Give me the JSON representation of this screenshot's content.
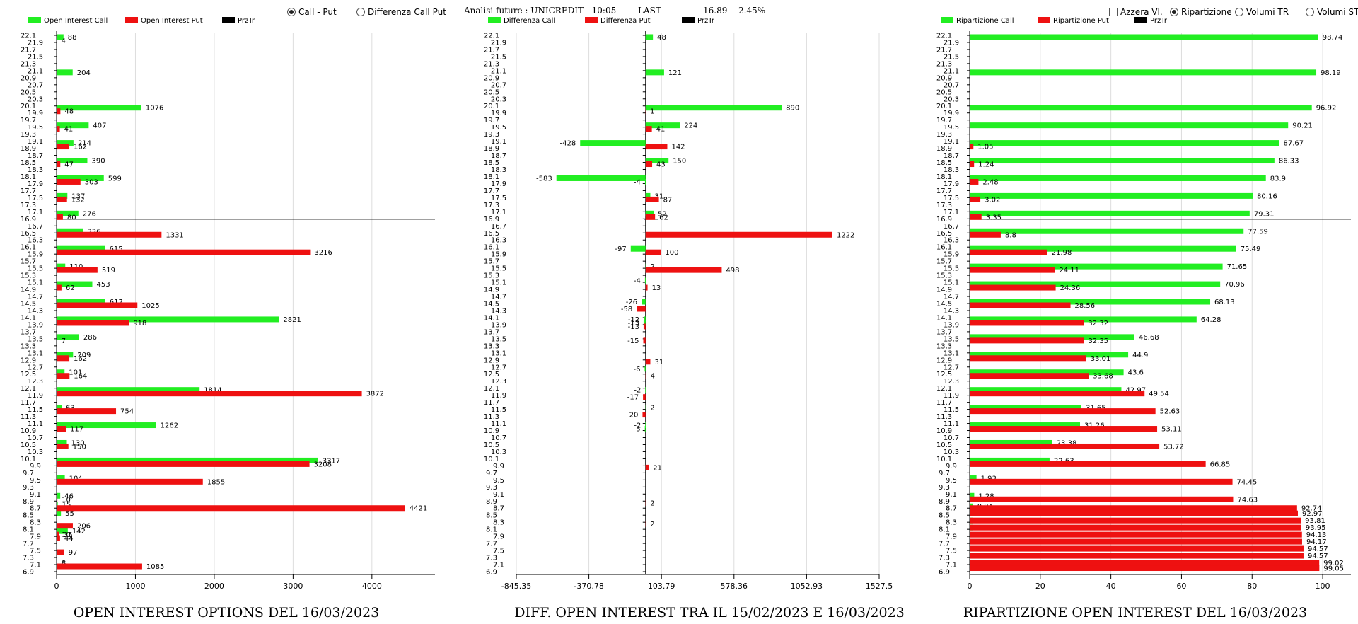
{
  "controls": {
    "radio_call_put": "Call - Put",
    "radio_diff_call_put": "Differenza Call Put",
    "header_analysis": "Analisi future : UNICREDIT - 10:05",
    "header_last_label": "LAST",
    "header_last_value": "16.89",
    "header_change": "2.45%",
    "check_azzera": "Azzera Vl.",
    "radio_ripartizione": "Ripartizione",
    "radio_volumi_tr": "Volumi TR",
    "radio_volumi_st": "Volumi ST"
  },
  "colors": {
    "call": "#22ee22",
    "put": "#ee1111",
    "prz": "#000000",
    "grid": "#dddddd"
  },
  "chart_data": [
    {
      "type": "bar",
      "orientation": "horizontal",
      "title": "OPEN INTEREST OPTIONS DEL 16/03/2023",
      "legend": [
        "Open Interest Call",
        "Open Interest Put",
        "PrzTr"
      ],
      "legend_position": "top",
      "y_ticks": [
        "22.1",
        "21.9",
        "21.7",
        "21.5",
        "21.3",
        "21.1",
        "20.9",
        "20.7",
        "20.5",
        "20.3",
        "20.1",
        "19.9",
        "19.7",
        "19.5",
        "19.3",
        "19.1",
        "18.9",
        "18.7",
        "18.5",
        "18.3",
        "18.1",
        "17.9",
        "17.7",
        "17.5",
        "17.3",
        "17.1",
        "16.9",
        "16.7",
        "16.5",
        "16.3",
        "16.1",
        "15.9",
        "15.7",
        "15.5",
        "15.3",
        "15.1",
        "14.9",
        "14.7",
        "14.5",
        "14.3",
        "14.1",
        "13.9",
        "13.7",
        "13.5",
        "13.3",
        "13.1",
        "12.9",
        "12.7",
        "12.5",
        "12.3",
        "12.1",
        "11.9",
        "11.7",
        "11.5",
        "11.3",
        "11.1",
        "10.9",
        "10.7",
        "10.5",
        "10.3",
        "10.1",
        "9.9",
        "9.7",
        "9.5",
        "9.3",
        "9.1",
        "8.9",
        "8.7",
        "8.5",
        "8.3",
        "8.1",
        "7.9",
        "7.7",
        "7.5",
        "7.3",
        "7.1",
        "6.9"
      ],
      "x_ticks": [
        "0",
        "1000",
        "2000",
        "3000",
        "4000"
      ],
      "xlim": [
        0,
        4800
      ],
      "prz_tr": 16.89,
      "series": [
        {
          "name": "Open Interest Call",
          "points": [
            [
              22.0,
              88
            ],
            [
              21.0,
              204
            ],
            [
              20.0,
              1076
            ],
            [
              19.5,
              407
            ],
            [
              19.0,
              214
            ],
            [
              18.5,
              390
            ],
            [
              18.0,
              599
            ],
            [
              17.5,
              137
            ],
            [
              17.0,
              276
            ],
            [
              16.5,
              336
            ],
            [
              16.0,
              615
            ],
            [
              15.5,
              110
            ],
            [
              15.0,
              453
            ],
            [
              14.5,
              617
            ],
            [
              14.0,
              2821
            ],
            [
              13.5,
              286
            ],
            [
              13.0,
              209
            ],
            [
              12.5,
              101
            ],
            [
              12.0,
              1814
            ],
            [
              11.5,
              63
            ],
            [
              11.0,
              1262
            ],
            [
              10.5,
              130
            ],
            [
              10.0,
              3317
            ],
            [
              9.5,
              104
            ],
            [
              9.0,
              46
            ],
            [
              8.75,
              15
            ],
            [
              8.5,
              55
            ],
            [
              8.0,
              142
            ],
            [
              7.9,
              10
            ],
            [
              7.1,
              8
            ]
          ]
        },
        {
          "name": "Open Interest Put",
          "points": [
            [
              22.0,
              4
            ],
            [
              20.0,
              48
            ],
            [
              19.5,
              41
            ],
            [
              19.0,
              162
            ],
            [
              18.5,
              47
            ],
            [
              18.0,
              303
            ],
            [
              17.5,
              132
            ],
            [
              17.0,
              80
            ],
            [
              16.5,
              1331
            ],
            [
              16.0,
              3216
            ],
            [
              15.5,
              519
            ],
            [
              15.0,
              62
            ],
            [
              14.5,
              1025
            ],
            [
              14.0,
              918
            ],
            [
              13.5,
              7
            ],
            [
              13.0,
              162
            ],
            [
              12.5,
              164
            ],
            [
              12.0,
              3872
            ],
            [
              11.5,
              754
            ],
            [
              11.0,
              117
            ],
            [
              10.5,
              150
            ],
            [
              10.0,
              3208
            ],
            [
              9.5,
              1855
            ],
            [
              9.0,
              10
            ],
            [
              8.75,
              4421
            ],
            [
              8.25,
              206
            ],
            [
              8.0,
              35
            ],
            [
              7.9,
              44
            ],
            [
              7.5,
              97
            ],
            [
              7.2,
              4
            ],
            [
              7.1,
              1085
            ]
          ]
        }
      ]
    },
    {
      "type": "bar",
      "orientation": "horizontal",
      "title": "DIFF. OPEN INTEREST TRA IL 15/02/2023 E 16/03/2023",
      "legend": [
        "Differenza Call",
        "Differenza Put",
        "PrzTr"
      ],
      "legend_position": "top",
      "y_ticks": [
        "22.1",
        "21.9",
        "21.7",
        "21.5",
        "21.3",
        "21.1",
        "20.9",
        "20.7",
        "20.5",
        "20.3",
        "20.1",
        "19.9",
        "19.7",
        "19.5",
        "19.3",
        "19.1",
        "18.9",
        "18.7",
        "18.5",
        "18.3",
        "18.1",
        "17.9",
        "17.7",
        "17.5",
        "17.3",
        "17.1",
        "16.9",
        "16.7",
        "16.5",
        "16.3",
        "16.1",
        "15.9",
        "15.7",
        "15.5",
        "15.3",
        "15.1",
        "14.9",
        "14.7",
        "14.5",
        "14.3",
        "14.1",
        "13.9",
        "13.7",
        "13.5",
        "13.3",
        "13.1",
        "12.9",
        "12.7",
        "12.5",
        "12.3",
        "12.1",
        "11.9",
        "11.7",
        "11.5",
        "11.3",
        "11.1",
        "10.9",
        "10.7",
        "10.5",
        "10.3",
        "10.1",
        "9.9",
        "9.7",
        "9.5",
        "9.3",
        "9.1",
        "8.9",
        "8.7",
        "8.5",
        "8.3",
        "8.1",
        "7.9",
        "7.7",
        "7.5",
        "7.3",
        "7.1",
        "6.9"
      ],
      "x_ticks": [
        "-845.35",
        "-370.78",
        "103.79",
        "578.36",
        "1052.93",
        "1527.5"
      ],
      "xlim": [
        -845.35,
        1527.5
      ],
      "prz_tr": 16.89,
      "series": [
        {
          "name": "Differenza Call",
          "points": [
            [
              22.0,
              48
            ],
            [
              21.0,
              121
            ],
            [
              20.0,
              890
            ],
            [
              19.5,
              224
            ],
            [
              19.0,
              -428
            ],
            [
              18.5,
              150
            ],
            [
              18.0,
              -583
            ],
            [
              17.9,
              -4
            ],
            [
              17.5,
              31
            ],
            [
              17.0,
              52
            ],
            [
              16.0,
              -97
            ],
            [
              15.5,
              2
            ],
            [
              15.1,
              -4
            ],
            [
              14.5,
              -26
            ],
            [
              14.0,
              -12
            ],
            [
              13.9,
              -13
            ],
            [
              12.6,
              -6
            ],
            [
              12.0,
              -2
            ],
            [
              11.5,
              2
            ],
            [
              11.0,
              -2
            ],
            [
              10.9,
              -5
            ]
          ]
        },
        {
          "name": "Differenza Put",
          "points": [
            [
              20.0,
              1
            ],
            [
              19.5,
              41
            ],
            [
              19.0,
              142
            ],
            [
              18.5,
              43
            ],
            [
              17.5,
              87
            ],
            [
              17.0,
              62
            ],
            [
              16.5,
              1222
            ],
            [
              16.0,
              100
            ],
            [
              15.5,
              498
            ],
            [
              15.0,
              13
            ],
            [
              14.4,
              -58
            ],
            [
              13.9,
              -13
            ],
            [
              13.5,
              -15
            ],
            [
              12.9,
              31
            ],
            [
              12.5,
              4
            ],
            [
              11.9,
              -17
            ],
            [
              11.4,
              -20
            ],
            [
              9.9,
              21
            ],
            [
              8.9,
              2
            ],
            [
              8.3,
              2
            ]
          ]
        }
      ]
    },
    {
      "type": "bar",
      "orientation": "horizontal",
      "title": "RIPARTIZIONE OPEN INTEREST DEL 16/03/2023",
      "legend": [
        "Ripartizione Call",
        "Ripartizione Put",
        "PrzTr"
      ],
      "legend_position": "top",
      "y_ticks": [
        "22.1",
        "21.9",
        "21.7",
        "21.5",
        "21.3",
        "21.1",
        "20.9",
        "20.7",
        "20.5",
        "20.3",
        "20.1",
        "19.9",
        "19.7",
        "19.5",
        "19.3",
        "19.1",
        "18.9",
        "18.7",
        "18.5",
        "18.3",
        "18.1",
        "17.9",
        "17.7",
        "17.5",
        "17.3",
        "17.1",
        "16.9",
        "16.7",
        "16.5",
        "16.3",
        "16.1",
        "15.9",
        "15.7",
        "15.5",
        "15.3",
        "15.1",
        "14.9",
        "14.7",
        "14.5",
        "14.3",
        "14.1",
        "13.9",
        "13.7",
        "13.5",
        "13.3",
        "13.1",
        "12.9",
        "12.7",
        "12.5",
        "12.3",
        "12.1",
        "11.9",
        "11.7",
        "11.5",
        "11.3",
        "11.1",
        "10.9",
        "10.7",
        "10.5",
        "10.3",
        "10.1",
        "9.9",
        "9.7",
        "9.5",
        "9.3",
        "9.1",
        "8.9",
        "8.7",
        "8.5",
        "8.3",
        "8.1",
        "7.9",
        "7.7",
        "7.5",
        "7.3",
        "7.1",
        "6.9"
      ],
      "x_ticks": [
        "0",
        "20",
        "40",
        "60",
        "80",
        "100"
      ],
      "xlim": [
        0,
        108
      ],
      "prz_tr": 16.89,
      "series": [
        {
          "name": "Ripartizione Call",
          "points": [
            [
              22.0,
              98.74
            ],
            [
              21.0,
              98.19
            ],
            [
              20.0,
              96.92
            ],
            [
              19.5,
              90.21
            ],
            [
              19.0,
              87.67
            ],
            [
              18.5,
              86.33
            ],
            [
              18.0,
              83.9
            ],
            [
              17.5,
              80.16
            ],
            [
              17.0,
              79.31
            ],
            [
              16.5,
              77.59
            ],
            [
              16.0,
              75.49
            ],
            [
              15.5,
              71.65
            ],
            [
              15.0,
              70.96
            ],
            [
              14.5,
              68.13
            ],
            [
              14.0,
              64.28
            ],
            [
              13.5,
              46.68
            ],
            [
              13.0,
              44.9
            ],
            [
              12.5,
              43.6
            ],
            [
              12.0,
              42.97
            ],
            [
              11.5,
              31.65
            ],
            [
              11.0,
              31.26
            ],
            [
              10.5,
              23.38
            ],
            [
              10.0,
              22.63
            ],
            [
              9.5,
              1.93
            ],
            [
              9.0,
              1.28
            ],
            [
              8.7,
              0.94
            ],
            [
              8.5,
              0.94
            ],
            [
              8.3,
              0.93
            ],
            [
              8.1,
              0.93
            ]
          ]
        },
        {
          "name": "Ripartizione Put",
          "points": [
            [
              19.0,
              1.05
            ],
            [
              18.5,
              1.24
            ],
            [
              18.0,
              2.48
            ],
            [
              17.5,
              3.02
            ],
            [
              17.0,
              3.35
            ],
            [
              16.5,
              8.8
            ],
            [
              16.0,
              21.98
            ],
            [
              15.5,
              24.11
            ],
            [
              15.0,
              24.36
            ],
            [
              14.5,
              28.56
            ],
            [
              14.0,
              32.32
            ],
            [
              13.5,
              32.35
            ],
            [
              13.0,
              33.01
            ],
            [
              12.5,
              33.68
            ],
            [
              12.0,
              49.54
            ],
            [
              11.5,
              52.63
            ],
            [
              11.0,
              53.11
            ],
            [
              10.5,
              53.72
            ],
            [
              10.0,
              66.85
            ],
            [
              9.5,
              74.45
            ],
            [
              9.0,
              74.63
            ],
            [
              8.75,
              92.74
            ],
            [
              8.6,
              92.97
            ],
            [
              8.4,
              93.81
            ],
            [
              8.2,
              93.95
            ],
            [
              8.0,
              94.13
            ],
            [
              7.8,
              94.17
            ],
            [
              7.6,
              94.57
            ],
            [
              7.4,
              94.57
            ],
            [
              7.2,
              99.02
            ],
            [
              7.05,
              99.05
            ]
          ]
        }
      ]
    }
  ]
}
